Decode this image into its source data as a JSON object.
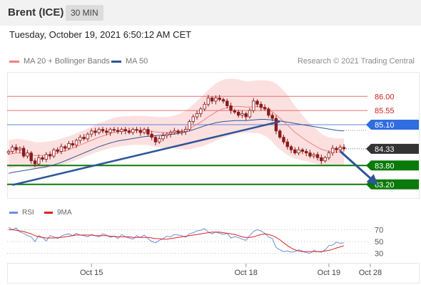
{
  "header": {
    "instrument": "Brent (ICE)",
    "timeframe": "30 MIN"
  },
  "timestamp": "Tuesday, October 19, 2021 6:50:12 AM CET",
  "legend": {
    "ma20": "MA 20 + Bollinger Bands",
    "ma50": "MA 50"
  },
  "credit": "Research © 2021 Trading Central",
  "colors": {
    "ma20": "#f08080",
    "ma50": "#2e5597",
    "resistance": "#e07070",
    "support": "#0a7a0a",
    "current": "#333333",
    "pivot": "#2f6de1",
    "rsi": "#6a8fdc",
    "rsi_ma": "#dd2222"
  },
  "chart_data": [
    {
      "type": "candlestick",
      "title": "",
      "x_ticks": [
        "Oct 15",
        "Oct 18",
        "Oct 19",
        "Oct 28"
      ],
      "y_range": [
        82.9,
        86.8
      ],
      "levels": [
        {
          "value": 86.0,
          "label": "86.00",
          "kind": "resistance"
        },
        {
          "value": 85.55,
          "label": "85.55",
          "kind": "resistance"
        },
        {
          "value": 85.1,
          "label": "85.10",
          "kind": "pivot"
        },
        {
          "value": 84.33,
          "label": "84.33",
          "kind": "current"
        },
        {
          "value": 83.8,
          "label": "83.80",
          "kind": "support"
        },
        {
          "value": 83.2,
          "label": "83.20",
          "kind": "support"
        }
      ],
      "close_series": [
        84.25,
        84.38,
        84.3,
        84.35,
        84.1,
        84.2,
        83.95,
        83.85,
        84.05,
        84.0,
        84.15,
        84.1,
        84.3,
        84.25,
        84.4,
        84.35,
        84.5,
        84.45,
        84.6,
        84.7,
        84.65,
        84.8,
        84.9,
        84.85,
        84.95,
        84.9,
        84.85,
        84.95,
        84.92,
        84.88,
        84.95,
        84.9,
        84.85,
        84.95,
        84.92,
        84.85,
        84.95,
        84.8,
        84.7,
        84.55,
        84.65,
        84.75,
        84.8,
        84.85,
        84.9,
        84.85,
        84.88,
        84.95,
        85.2,
        85.35,
        85.45,
        85.6,
        85.75,
        85.95,
        85.85,
        85.95,
        85.9,
        85.85,
        85.7,
        85.55,
        85.5,
        85.4,
        85.45,
        85.35,
        85.55,
        85.85,
        85.75,
        85.65,
        85.6,
        85.4,
        85.3,
        84.9,
        84.7,
        84.55,
        84.4,
        84.3,
        84.2,
        84.3,
        84.25,
        84.2,
        84.1,
        84.15,
        84.05,
        83.95,
        84.05,
        84.2,
        84.35,
        84.3,
        84.38,
        84.33
      ],
      "ma20": [
        84.15,
        84.18,
        84.2,
        84.2,
        84.18,
        84.17,
        84.15,
        84.12,
        84.12,
        84.12,
        84.14,
        84.15,
        84.18,
        84.2,
        84.24,
        84.27,
        84.31,
        84.35,
        84.4,
        84.45,
        84.5,
        84.55,
        84.6,
        84.65,
        84.7,
        84.74,
        84.78,
        84.82,
        84.85,
        84.87,
        84.89,
        84.9,
        84.91,
        84.92,
        84.92,
        84.92,
        84.92,
        84.91,
        84.89,
        84.87,
        84.86,
        84.85,
        84.85,
        84.86,
        84.87,
        84.88,
        84.9,
        84.93,
        84.98,
        85.04,
        85.11,
        85.18,
        85.26,
        85.35,
        85.42,
        85.5,
        85.56,
        85.61,
        85.64,
        85.66,
        85.68,
        85.68,
        85.67,
        85.66,
        85.66,
        85.67,
        85.67,
        85.66,
        85.63,
        85.58,
        85.51,
        85.41,
        85.31,
        85.2,
        85.09,
        84.97,
        84.86,
        84.77,
        84.68,
        84.6,
        84.52,
        84.45,
        84.38,
        84.32,
        84.28,
        84.25,
        84.24,
        84.23,
        84.23,
        84.23
      ],
      "ma50": [
        83.55,
        83.58,
        83.6,
        83.62,
        83.64,
        83.66,
        83.68,
        83.7,
        83.72,
        83.74,
        83.76,
        83.79,
        83.82,
        83.86,
        83.9,
        83.95,
        84.0,
        84.05,
        84.1,
        84.15,
        84.2,
        84.25,
        84.3,
        84.35,
        84.4,
        84.44,
        84.48,
        84.52,
        84.55,
        84.58,
        84.6,
        84.62,
        84.64,
        84.66,
        84.68,
        84.7,
        84.72,
        84.73,
        84.74,
        84.75,
        84.76,
        84.77,
        84.78,
        84.79,
        84.8,
        84.82,
        84.84,
        84.87,
        84.9,
        84.94,
        84.98,
        85.02,
        85.06,
        85.1,
        85.13,
        85.16,
        85.18,
        85.2,
        85.21,
        85.22,
        85.23,
        85.23,
        85.23,
        85.23,
        85.24,
        85.25,
        85.26,
        85.27,
        85.27,
        85.26,
        85.25,
        85.24,
        85.22,
        85.2,
        85.18,
        85.16,
        85.14,
        85.12,
        85.1,
        85.08,
        85.06,
        85.04,
        85.02,
        85.0,
        84.98,
        84.96,
        84.94,
        84.92,
        84.91,
        84.9
      ],
      "bollinger_width": [
        0.45,
        0.45,
        0.45,
        0.44,
        0.44,
        0.43,
        0.43,
        0.42,
        0.42,
        0.42,
        0.42,
        0.42,
        0.42,
        0.42,
        0.42,
        0.42,
        0.42,
        0.42,
        0.43,
        0.43,
        0.43,
        0.43,
        0.44,
        0.44,
        0.45,
        0.45,
        0.46,
        0.46,
        0.47,
        0.47,
        0.47,
        0.47,
        0.46,
        0.46,
        0.46,
        0.46,
        0.46,
        0.46,
        0.47,
        0.48,
        0.48,
        0.49,
        0.49,
        0.5,
        0.52,
        0.55,
        0.58,
        0.62,
        0.66,
        0.7,
        0.74,
        0.78,
        0.82,
        0.86,
        0.89,
        0.91,
        0.92,
        0.92,
        0.91,
        0.9,
        0.88,
        0.86,
        0.84,
        0.82,
        0.82,
        0.83,
        0.84,
        0.86,
        0.88,
        0.92,
        0.96,
        1.0,
        1.0,
        0.98,
        0.95,
        0.9,
        0.84,
        0.78,
        0.72,
        0.66,
        0.62,
        0.58,
        0.54,
        0.5,
        0.47,
        0.45,
        0.44,
        0.43,
        0.43,
        0.43
      ],
      "trend_support": {
        "from": [
          1,
          83.18
        ],
        "to": [
          72,
          85.2
        ]
      },
      "forecast_arrow": {
        "from": [
          88,
          84.3
        ],
        "to": [
          97,
          83.2
        ]
      }
    },
    {
      "type": "line",
      "title": "",
      "legend": [
        "RSI",
        "9MA"
      ],
      "y_ticks": [
        70,
        50,
        30
      ],
      "y_range": [
        15,
        85
      ],
      "rsi": [
        74,
        70,
        73,
        66,
        64,
        60,
        58,
        50,
        60,
        57,
        51,
        60,
        58,
        55,
        59,
        62,
        63,
        60,
        64,
        61,
        60,
        58,
        62,
        60,
        58,
        63,
        61,
        57,
        59,
        55,
        62,
        58,
        56,
        54,
        60,
        57,
        61,
        55,
        50,
        48,
        52,
        55,
        59,
        58,
        62,
        61,
        60,
        57,
        63,
        65,
        68,
        69,
        72,
        66,
        63,
        66,
        64,
        62,
        64,
        56,
        58,
        57,
        54,
        52,
        60,
        67,
        70,
        68,
        64,
        58,
        55,
        40,
        36,
        33,
        34,
        32,
        33,
        36,
        34,
        31,
        30,
        35,
        33,
        32,
        36,
        43,
        44,
        49,
        47,
        48
      ],
      "rsi_ma": [
        70,
        70,
        69,
        68,
        67,
        65,
        63,
        60,
        58,
        57,
        56,
        56,
        56,
        57,
        57,
        58,
        59,
        60,
        61,
        61,
        61,
        61,
        61,
        60,
        60,
        60,
        60,
        59,
        59,
        58,
        58,
        58,
        58,
        57,
        57,
        57,
        57,
        57,
        56,
        55,
        55,
        54,
        54,
        55,
        56,
        57,
        58,
        59,
        60,
        61,
        62,
        63,
        64,
        65,
        66,
        66,
        66,
        65,
        64,
        63,
        62,
        60,
        58,
        57,
        57,
        58,
        60,
        62,
        63,
        62,
        60,
        57,
        53,
        48,
        43,
        39,
        36,
        34,
        33,
        33,
        33,
        33,
        33,
        33,
        34,
        35,
        37,
        39,
        41,
        43
      ]
    }
  ]
}
